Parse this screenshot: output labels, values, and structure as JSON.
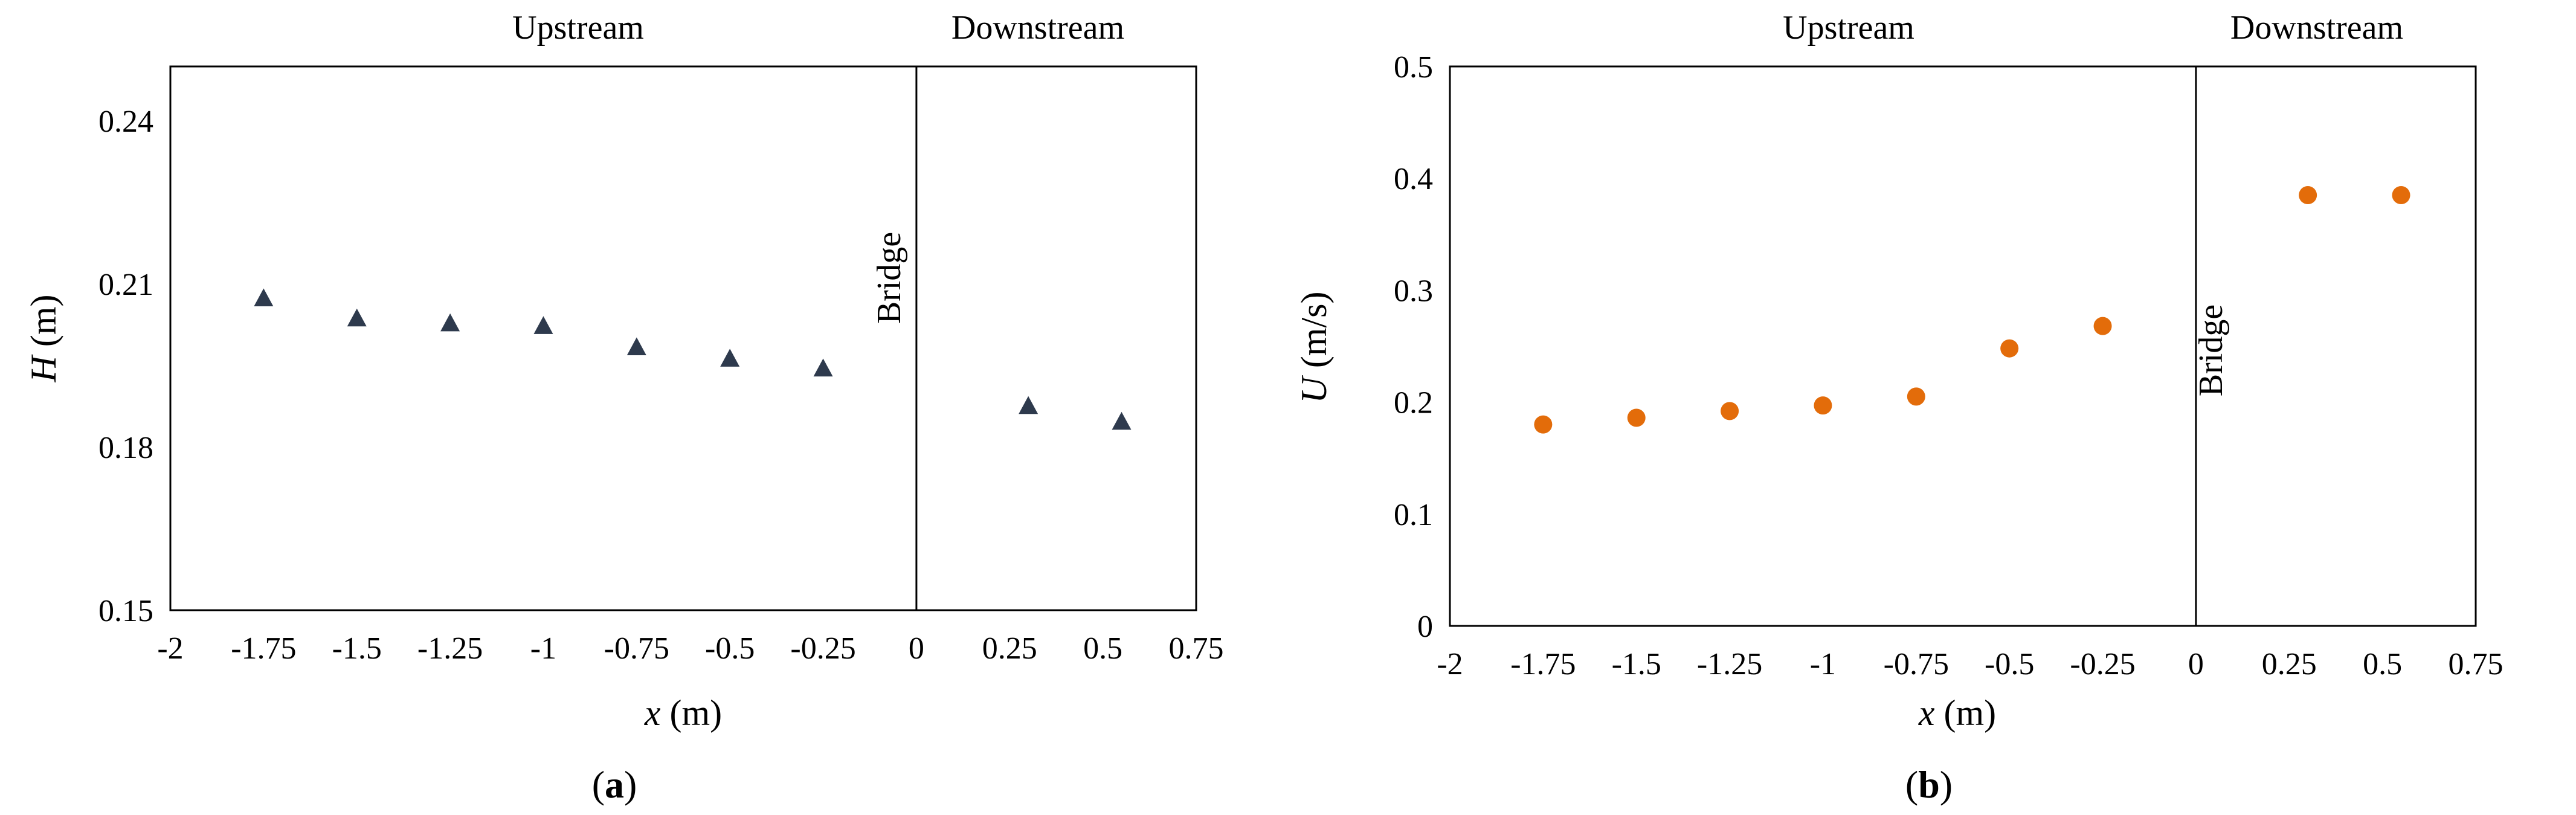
{
  "chart_data": [
    {
      "type": "scatter",
      "panel_label": {
        "open": "(",
        "letter": "a",
        "close": ")"
      },
      "xlabel": {
        "var": "x",
        "unit": " (m)"
      },
      "ylabel": {
        "var": "H",
        "unit": " (m)"
      },
      "xlim": [
        -2,
        0.75
      ],
      "ylim": [
        0.15,
        0.25
      ],
      "x_ticks": [
        -2,
        -1.75,
        -1.5,
        -1.25,
        -1,
        -0.75,
        -0.5,
        -0.25,
        0,
        0.25,
        0.5,
        0.75
      ],
      "x_tick_labels": [
        "-2",
        "-1.75",
        "-1.5",
        "-1.25",
        "-1",
        "-0.75",
        "-0.5",
        "-0.25",
        "0",
        "0.25",
        "0.5",
        "0.75"
      ],
      "y_ticks": [
        0.15,
        0.18,
        0.21,
        0.24
      ],
      "y_tick_labels": [
        "0.15",
        "0.18",
        "0.21",
        "0.24"
      ],
      "regions": {
        "upstream": "Upstream",
        "downstream": "Downstream"
      },
      "bridge_label": "Bridge",
      "bridge_x": 0,
      "marker": "triangle",
      "color": "#2e3a4d",
      "series": [
        {
          "name": "H",
          "x": [
            -1.75,
            -1.5,
            -1.25,
            -1,
            -0.75,
            -0.5,
            -0.25,
            0.3,
            0.55
          ],
          "y": [
            0.2074,
            0.2037,
            0.2028,
            0.2023,
            0.1984,
            0.1963,
            0.1945,
            0.1876,
            0.1847
          ]
        }
      ]
    },
    {
      "type": "scatter",
      "panel_label": {
        "open": "(",
        "letter": "b",
        "close": ")"
      },
      "xlabel": {
        "var": "x",
        "unit": " (m)"
      },
      "ylabel": {
        "var": "U",
        "unit": " (m/s)"
      },
      "xlim": [
        -2,
        0.75
      ],
      "ylim": [
        0,
        0.5
      ],
      "x_ticks": [
        -2,
        -1.75,
        -1.5,
        -1.25,
        -1,
        -0.75,
        -0.5,
        -0.25,
        0,
        0.25,
        0.5,
        0.75
      ],
      "x_tick_labels": [
        "-2",
        "-1.75",
        "-1.5",
        "-1.25",
        "-1",
        "-0.75",
        "-0.5",
        "-0.25",
        "0",
        "0.25",
        "0.5",
        "0.75"
      ],
      "y_ticks": [
        0,
        0.1,
        0.2,
        0.3,
        0.4,
        0.5
      ],
      "y_tick_labels": [
        "0",
        "0.1",
        "0.2",
        "0.3",
        "0.4",
        "0.5"
      ],
      "regions": {
        "upstream": "Upstream",
        "downstream": "Downstream"
      },
      "bridge_label": "Bridge",
      "bridge_x": 0,
      "marker": "circle",
      "color": "#e36c0a",
      "series": [
        {
          "name": "U",
          "x": [
            -1.75,
            -1.5,
            -1.25,
            -1,
            -0.75,
            -0.5,
            -0.25,
            0.3,
            0.55
          ],
          "y": [
            0.18,
            0.186,
            0.192,
            0.197,
            0.205,
            0.248,
            0.268,
            0.385,
            0.385
          ]
        }
      ]
    }
  ]
}
